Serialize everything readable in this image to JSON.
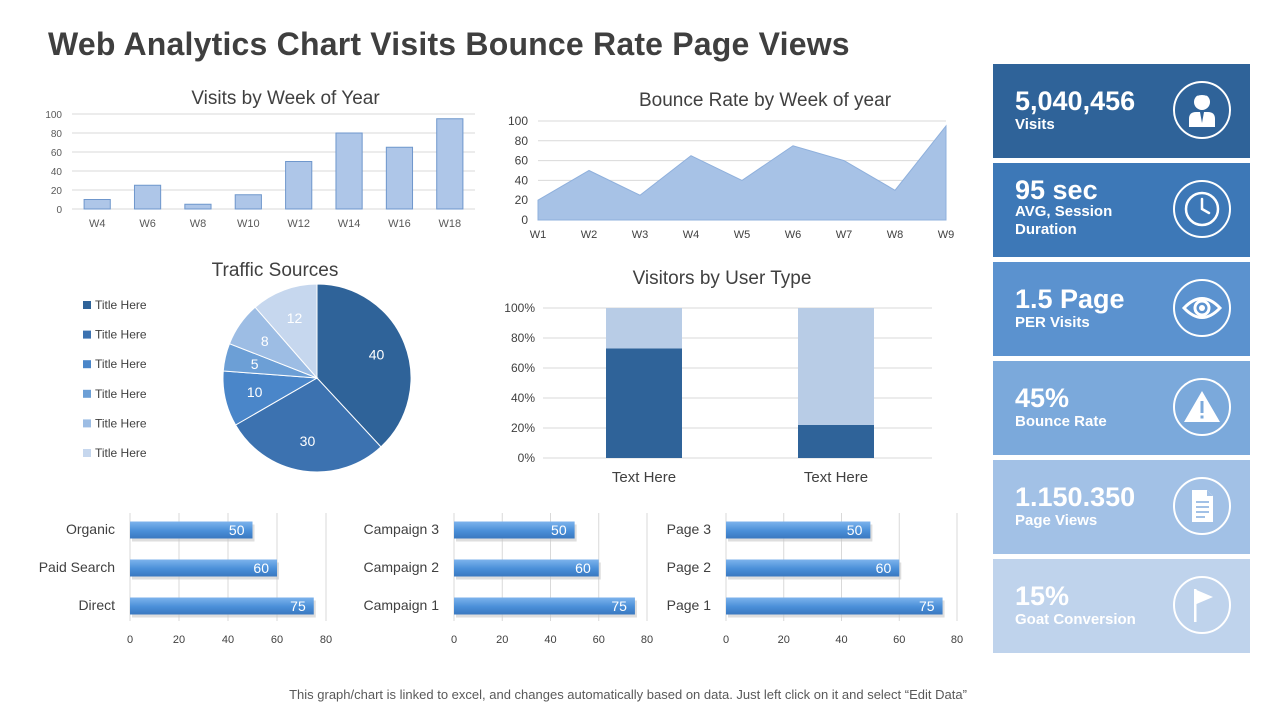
{
  "page": {
    "title": "Web Analytics Chart Visits Bounce Rate Page Views",
    "footnote": "This graph/chart is linked to excel, and changes automatically based on data. Just left click on it and select “Edit Data”"
  },
  "colors": {
    "bar_light": "#aec6e8",
    "bar_border": "#6f97cc",
    "area_fill": "#a7c2e6",
    "dark_blue": "#2f6399",
    "light_blue": "#b8cce6",
    "hbar": "#4a8fd8",
    "kpi": [
      "#2f6399",
      "#3d78b7",
      "#5b92cf",
      "#7ba9db",
      "#a2c1e6",
      "#bfd3ec"
    ]
  },
  "kpis": [
    {
      "value": "5,040,456",
      "label": "Visits",
      "icon": "user-icon"
    },
    {
      "value": "95 sec",
      "label": "AVG, Session Duration",
      "icon": "clock-icon"
    },
    {
      "value": "1.5 Page",
      "label": "PER Visits",
      "icon": "eye-icon"
    },
    {
      "value": "45%",
      "label": "Bounce Rate",
      "icon": "warning-icon"
    },
    {
      "value": "1.150.350",
      "label": "Page Views",
      "icon": "document-icon"
    },
    {
      "value": "15%",
      "label": "Goat Conversion",
      "icon": "flag-icon"
    }
  ],
  "chart_data": [
    {
      "type": "bar",
      "title": "Visits by Week of Year",
      "categories": [
        "W4",
        "W6",
        "W8",
        "W10",
        "W12",
        "W14",
        "W16",
        "W18"
      ],
      "values": [
        10,
        25,
        5,
        15,
        50,
        80,
        65,
        95
      ],
      "ylim": [
        0,
        100
      ],
      "yticks": [
        0,
        20,
        40,
        60,
        80,
        100
      ],
      "grid": true
    },
    {
      "type": "area",
      "title": "Bounce Rate by Week of year",
      "categories": [
        "W1",
        "W2",
        "W3",
        "W4",
        "W5",
        "W6",
        "W7",
        "W8",
        "W9"
      ],
      "values": [
        20,
        50,
        25,
        65,
        40,
        75,
        60,
        30,
        95
      ],
      "ylim": [
        0,
        100
      ],
      "yticks": [
        0,
        20,
        40,
        60,
        80,
        100
      ],
      "grid": true
    },
    {
      "type": "pie",
      "title": "Traffic Sources",
      "labels": [
        "Title Here",
        "Title Here",
        "Title Here",
        "Title Here",
        "Title Here",
        "Title Here"
      ],
      "values": [
        40,
        30,
        10,
        5,
        8,
        12
      ],
      "legend": "left"
    },
    {
      "type": "bar",
      "title": "Visitors by User Type",
      "stacked": "percent",
      "categories": [
        "Text Here",
        "Text Here"
      ],
      "series": [
        {
          "values": [
            73,
            22
          ]
        },
        {
          "values": [
            27,
            78
          ]
        }
      ],
      "yticks": [
        "0%",
        "20%",
        "40%",
        "60%",
        "80%",
        "100%"
      ],
      "grid": true
    },
    {
      "type": "bar",
      "orientation": "horizontal",
      "categories": [
        "Organic",
        "Paid Search",
        "Direct"
      ],
      "values": [
        50,
        60,
        75
      ],
      "xlim": [
        0,
        80
      ],
      "xticks": [
        0,
        20,
        40,
        60,
        80
      ]
    },
    {
      "type": "bar",
      "orientation": "horizontal",
      "categories": [
        "Campaign 3",
        "Campaign 2",
        "Campaign 1"
      ],
      "values": [
        50,
        60,
        75
      ],
      "xlim": [
        0,
        80
      ],
      "xticks": [
        0,
        20,
        40,
        60,
        80
      ]
    },
    {
      "type": "bar",
      "orientation": "horizontal",
      "categories": [
        "Page 3",
        "Page 2",
        "Page 1"
      ],
      "values": [
        50,
        60,
        75
      ],
      "xlim": [
        0,
        80
      ],
      "xticks": [
        0,
        20,
        40,
        60,
        80
      ]
    }
  ]
}
